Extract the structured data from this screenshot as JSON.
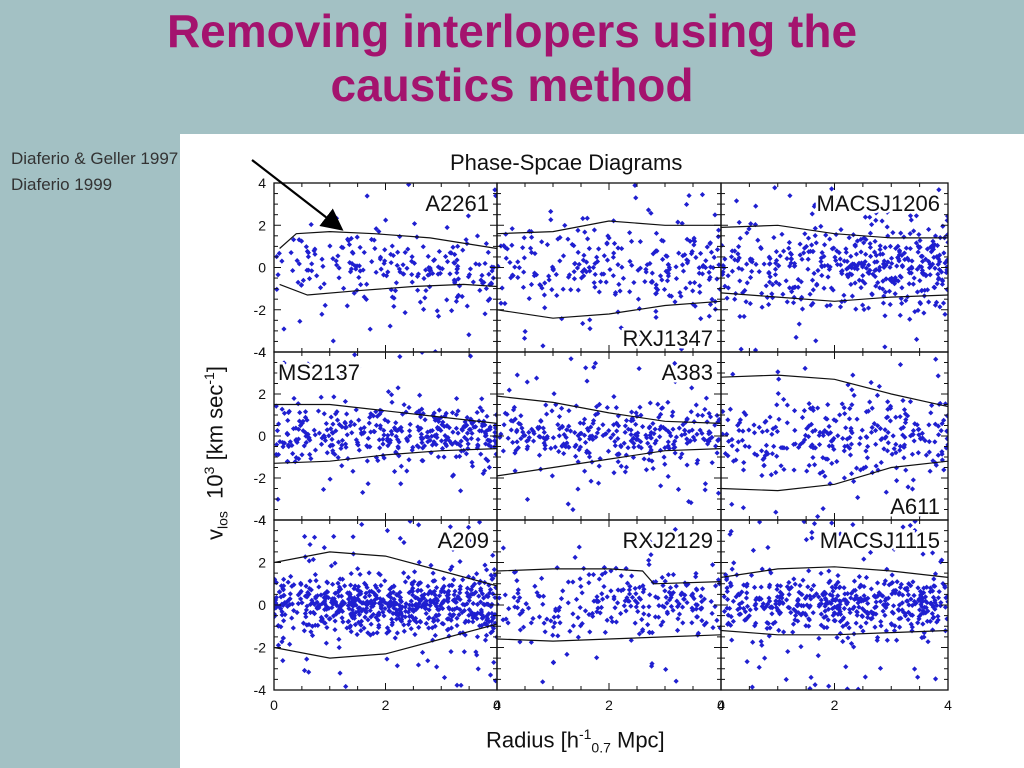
{
  "slide": {
    "title_line1": "Removing interlopers using the",
    "title_line2": "caustics method",
    "ref1": "Diaferio & Geller 1997",
    "ref2": "Diaferio 1999"
  },
  "chart_data": {
    "type": "scatter",
    "title": "Phase-Spcae Diagrams",
    "ylabel_main": "v",
    "ylabel_sub": "los",
    "ylabel_base": "10",
    "ylabel_exp": "3",
    "ylabel_units": "[km sec",
    "ylabel_units_exp": "-1",
    "ylabel_close": "]",
    "xlabel_main": "Radius [h",
    "xlabel_exp": "-1",
    "xlabel_sub": "0.7",
    "xlabel_units": "Mpc]",
    "xlim": [
      0,
      4
    ],
    "ylim": [
      -4,
      4
    ],
    "xticks": [
      "0",
      "2",
      "4"
    ],
    "yticks": [
      "4",
      "2",
      "0",
      "-2",
      "-4"
    ],
    "marker_color": "#1f1fd0",
    "panels": [
      {
        "name": "A2261",
        "label_pos": "top-right",
        "n_points": 220,
        "spread": 1.6,
        "upper": [
          [
            0.1,
            0.9
          ],
          [
            0.4,
            1.6
          ],
          [
            1.0,
            1.7
          ],
          [
            1.8,
            1.6
          ],
          [
            2.8,
            1.4
          ],
          [
            4.0,
            0.9
          ]
        ],
        "lower": [
          [
            0.1,
            -0.8
          ],
          [
            0.6,
            -1.3
          ],
          [
            1.5,
            -1.1
          ],
          [
            2.5,
            -0.9
          ],
          [
            3.4,
            -0.8
          ],
          [
            4.0,
            -0.9
          ]
        ]
      },
      {
        "name": "RXJ1347",
        "label_pos": "bottom-right",
        "n_points": 260,
        "spread": 2.0,
        "upper": [
          [
            0.0,
            1.6
          ],
          [
            1.0,
            1.7
          ],
          [
            2.0,
            2.2
          ],
          [
            3.0,
            2.0
          ],
          [
            4.0,
            2.0
          ]
        ],
        "lower": [
          [
            0.0,
            -2.0
          ],
          [
            1.0,
            -2.4
          ],
          [
            2.0,
            -2.2
          ],
          [
            3.0,
            -1.8
          ],
          [
            4.0,
            -1.6
          ]
        ]
      },
      {
        "name": "MACSJ1206",
        "label_pos": "top-right",
        "n_points": 450,
        "spread": 1.7,
        "upper": [
          [
            0.0,
            1.9
          ],
          [
            1.0,
            2.0
          ],
          [
            2.0,
            1.6
          ],
          [
            3.0,
            1.4
          ],
          [
            4.0,
            1.4
          ]
        ],
        "lower": [
          [
            0.0,
            -1.2
          ],
          [
            1.0,
            -1.4
          ],
          [
            2.0,
            -1.6
          ],
          [
            3.0,
            -1.4
          ],
          [
            4.0,
            -1.3
          ]
        ]
      },
      {
        "name": "MS2137",
        "label_pos": "top-left",
        "n_points": 380,
        "spread": 1.3,
        "upper": [
          [
            0.0,
            1.5
          ],
          [
            1.0,
            1.5
          ],
          [
            2.0,
            1.2
          ],
          [
            3.0,
            0.9
          ],
          [
            4.0,
            0.6
          ]
        ],
        "lower": [
          [
            0.0,
            -1.3
          ],
          [
            1.0,
            -1.2
          ],
          [
            2.0,
            -0.9
          ],
          [
            3.0,
            -0.7
          ],
          [
            4.0,
            -0.6
          ]
        ]
      },
      {
        "name": "A383",
        "label_pos": "top-right",
        "n_points": 330,
        "spread": 1.3,
        "upper": [
          [
            0.0,
            1.9
          ],
          [
            1.0,
            1.6
          ],
          [
            2.0,
            1.1
          ],
          [
            3.0,
            0.7
          ],
          [
            4.0,
            0.6
          ]
        ],
        "lower": [
          [
            0.0,
            -1.9
          ],
          [
            1.0,
            -1.5
          ],
          [
            2.0,
            -1.1
          ],
          [
            3.0,
            -0.7
          ],
          [
            4.0,
            -0.6
          ]
        ]
      },
      {
        "name": "A611",
        "label_pos": "bottom-right",
        "n_points": 300,
        "spread": 1.8,
        "upper": [
          [
            0.0,
            2.8
          ],
          [
            1.0,
            2.9
          ],
          [
            2.0,
            2.7
          ],
          [
            3.0,
            2.0
          ],
          [
            4.0,
            1.4
          ]
        ],
        "lower": [
          [
            0.0,
            -2.5
          ],
          [
            1.0,
            -2.6
          ],
          [
            2.0,
            -2.3
          ],
          [
            3.0,
            -1.5
          ],
          [
            4.0,
            -1.2
          ]
        ]
      },
      {
        "name": "A209",
        "label_pos": "top-right",
        "n_points": 700,
        "spread": 1.3,
        "upper": [
          [
            0.0,
            2.0
          ],
          [
            1.0,
            2.5
          ],
          [
            2.0,
            2.3
          ],
          [
            3.0,
            1.6
          ],
          [
            4.0,
            0.9
          ]
        ],
        "lower": [
          [
            0.0,
            -2.0
          ],
          [
            1.0,
            -2.5
          ],
          [
            2.0,
            -2.3
          ],
          [
            3.0,
            -1.6
          ],
          [
            4.0,
            -0.9
          ]
        ]
      },
      {
        "name": "RXJ2129",
        "label_pos": "top-right",
        "n_points": 260,
        "spread": 1.5,
        "upper": [
          [
            0.0,
            1.6
          ],
          [
            1.0,
            1.7
          ],
          [
            2.0,
            1.7
          ],
          [
            2.6,
            1.6
          ],
          [
            2.8,
            1.0
          ],
          [
            4.0,
            1.1
          ]
        ],
        "lower": [
          [
            0.0,
            -1.6
          ],
          [
            1.0,
            -1.7
          ],
          [
            2.0,
            -1.6
          ],
          [
            3.0,
            -1.5
          ],
          [
            4.0,
            -1.4
          ]
        ]
      },
      {
        "name": "MACSJ1115",
        "label_pos": "top-right",
        "n_points": 520,
        "spread": 1.3,
        "upper": [
          [
            0.0,
            1.3
          ],
          [
            1.0,
            1.7
          ],
          [
            2.0,
            1.8
          ],
          [
            3.0,
            1.6
          ],
          [
            4.0,
            1.3
          ]
        ],
        "lower": [
          [
            0.0,
            -1.2
          ],
          [
            1.0,
            -1.4
          ],
          [
            2.0,
            -1.4
          ],
          [
            3.0,
            -1.3
          ],
          [
            4.0,
            -1.2
          ]
        ]
      }
    ]
  }
}
